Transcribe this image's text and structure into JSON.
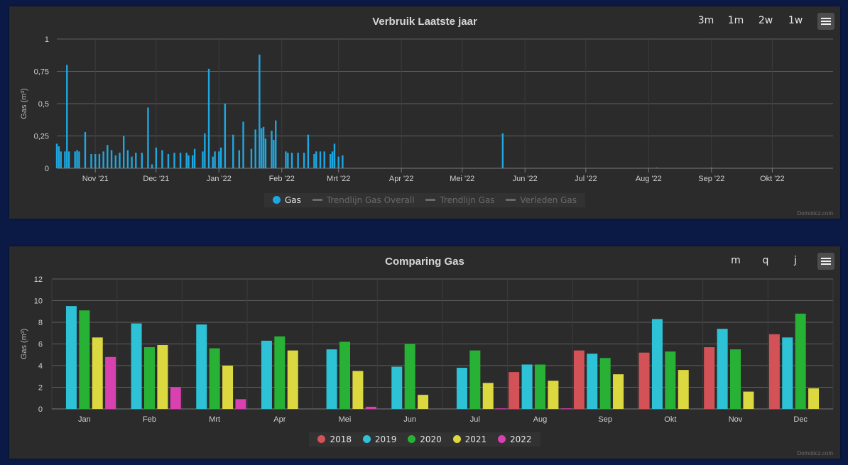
{
  "panel1": {
    "title": "Verbruik Laatste jaar",
    "range_buttons": [
      "3m",
      "1m",
      "2w",
      "1w"
    ],
    "credit": "Domoticz.com",
    "legend": [
      {
        "label": "Gas",
        "color": "#1ea7e1",
        "enabled": true,
        "marker": "dot"
      },
      {
        "label": "Trendlijn Gas Overall",
        "enabled": false,
        "marker": "line"
      },
      {
        "label": "Trendlijn Gas",
        "enabled": false,
        "marker": "line"
      },
      {
        "label": "Verleden Gas",
        "enabled": false,
        "marker": "line"
      }
    ]
  },
  "panel2": {
    "title": "Comparing Gas",
    "range_buttons": [
      "m",
      "q",
      "j"
    ],
    "credit": "Domoticz.com",
    "legend": [
      {
        "label": "2018",
        "color": "#d35257"
      },
      {
        "label": "2019",
        "color": "#2ec2d6"
      },
      {
        "label": "2020",
        "color": "#27b236"
      },
      {
        "label": "2021",
        "color": "#dcd840"
      },
      {
        "label": "2022",
        "color": "#d940b0"
      }
    ]
  },
  "chart_data": [
    {
      "type": "bar",
      "title": "Verbruik Laatste jaar",
      "ylabel": "Gas (m³)",
      "ylim": [
        0,
        1
      ],
      "yticks": [
        "0",
        "0,25",
        "0,5",
        "0,75",
        "1"
      ],
      "x_tick_labels": [
        "Nov '21",
        "Dec '21",
        "Jan '22",
        "Feb '22",
        "Mrt '22",
        "Apr '22",
        "Mei '22",
        "Jun '22",
        "Jul '22",
        "Aug '22",
        "Sep '22",
        "Okt '22"
      ],
      "x_tick_dates": [
        "2021-11-01",
        "2021-12-01",
        "2022-01-01",
        "2022-02-01",
        "2022-03-01",
        "2022-04-01",
        "2022-05-01",
        "2022-06-01",
        "2022-07-01",
        "2022-08-01",
        "2022-09-01",
        "2022-10-01"
      ],
      "x_range": [
        "2021-10-13",
        "2022-10-31"
      ],
      "grid": true,
      "series": [
        {
          "name": "Gas",
          "color": "#1ea7e1",
          "points": [
            [
              "2021-10-13",
              0.19
            ],
            [
              "2021-10-14",
              0.17
            ],
            [
              "2021-10-15",
              0.13
            ],
            [
              "2021-10-17",
              0.13
            ],
            [
              "2021-10-18",
              0.8
            ],
            [
              "2021-10-19",
              0.13
            ],
            [
              "2021-10-22",
              0.13
            ],
            [
              "2021-10-23",
              0.14
            ],
            [
              "2021-10-24",
              0.13
            ],
            [
              "2021-10-27",
              0.28
            ],
            [
              "2021-10-30",
              0.11
            ],
            [
              "2021-11-01",
              0.11
            ],
            [
              "2021-11-03",
              0.11
            ],
            [
              "2021-11-05",
              0.13
            ],
            [
              "2021-11-07",
              0.18
            ],
            [
              "2021-11-09",
              0.14
            ],
            [
              "2021-11-11",
              0.1
            ],
            [
              "2021-11-13",
              0.12
            ],
            [
              "2021-11-15",
              0.25
            ],
            [
              "2021-11-17",
              0.14
            ],
            [
              "2021-11-19",
              0.09
            ],
            [
              "2021-11-21",
              0.12
            ],
            [
              "2021-11-24",
              0.12
            ],
            [
              "2021-11-27",
              0.47
            ],
            [
              "2021-11-29",
              0.03
            ],
            [
              "2021-12-01",
              0.16
            ],
            [
              "2021-12-04",
              0.14
            ],
            [
              "2021-12-07",
              0.11
            ],
            [
              "2021-12-10",
              0.12
            ],
            [
              "2021-12-13",
              0.12
            ],
            [
              "2021-12-16",
              0.12
            ],
            [
              "2021-12-17",
              0.1
            ],
            [
              "2021-12-19",
              0.1
            ],
            [
              "2021-12-20",
              0.15
            ],
            [
              "2021-12-24",
              0.13
            ],
            [
              "2021-12-25",
              0.27
            ],
            [
              "2021-12-27",
              0.77
            ],
            [
              "2021-12-29",
              0.09
            ],
            [
              "2021-12-30",
              0.13
            ],
            [
              "2022-01-01",
              0.13
            ],
            [
              "2022-01-02",
              0.16
            ],
            [
              "2022-01-04",
              0.5
            ],
            [
              "2022-01-08",
              0.26
            ],
            [
              "2022-01-11",
              0.14
            ],
            [
              "2022-01-13",
              0.36
            ],
            [
              "2022-01-17",
              0.15
            ],
            [
              "2022-01-19",
              0.3
            ],
            [
              "2022-01-21",
              0.88
            ],
            [
              "2022-01-22",
              0.31
            ],
            [
              "2022-01-23",
              0.32
            ],
            [
              "2022-01-24",
              0.23
            ],
            [
              "2022-01-27",
              0.29
            ],
            [
              "2022-01-28",
              0.22
            ],
            [
              "2022-01-29",
              0.37
            ],
            [
              "2022-02-03",
              0.13
            ],
            [
              "2022-02-04",
              0.12
            ],
            [
              "2022-02-06",
              0.12
            ],
            [
              "2022-02-09",
              0.12
            ],
            [
              "2022-02-12",
              0.12
            ],
            [
              "2022-02-14",
              0.26
            ],
            [
              "2022-02-17",
              0.11
            ],
            [
              "2022-02-18",
              0.13
            ],
            [
              "2022-02-20",
              0.13
            ],
            [
              "2022-02-22",
              0.13
            ],
            [
              "2022-02-25",
              0.11
            ],
            [
              "2022-02-26",
              0.13
            ],
            [
              "2022-02-27",
              0.19
            ],
            [
              "2022-03-01",
              0.09
            ],
            [
              "2022-03-03",
              0.1
            ],
            [
              "2022-05-21",
              0.27
            ],
            [
              "2022-08-05",
              0.005
            ],
            [
              "2022-09-01",
              0.005
            ]
          ]
        }
      ]
    },
    {
      "type": "bar",
      "title": "Comparing Gas",
      "ylabel": "Gas (m³)",
      "ylim": [
        0,
        12
      ],
      "yticks": [
        "0",
        "2",
        "4",
        "6",
        "8",
        "10",
        "12"
      ],
      "categories": [
        "Jan",
        "Feb",
        "Mrt",
        "Apr",
        "Mei",
        "Jun",
        "Jul",
        "Aug",
        "Sep",
        "Okt",
        "Nov",
        "Dec"
      ],
      "grid": true,
      "series": [
        {
          "name": "2018",
          "color": "#d35257",
          "values": [
            null,
            null,
            null,
            null,
            null,
            null,
            null,
            3.4,
            5.4,
            5.2,
            5.7,
            6.9
          ]
        },
        {
          "name": "2019",
          "color": "#2ec2d6",
          "values": [
            9.5,
            7.9,
            7.8,
            6.3,
            5.5,
            3.9,
            3.8,
            4.1,
            5.1,
            8.3,
            7.4,
            6.6
          ]
        },
        {
          "name": "2020",
          "color": "#27b236",
          "values": [
            9.1,
            5.7,
            5.6,
            6.7,
            6.2,
            6.0,
            5.4,
            4.1,
            4.7,
            5.3,
            5.5,
            8.8
          ]
        },
        {
          "name": "2021",
          "color": "#dcd840",
          "values": [
            6.6,
            5.9,
            4.0,
            5.4,
            3.5,
            1.3,
            2.4,
            2.6,
            3.2,
            3.6,
            1.6,
            1.9
          ]
        },
        {
          "name": "2022",
          "color": "#d940b0",
          "values": [
            4.8,
            2.0,
            0.9,
            null,
            0.2,
            null,
            0.05,
            0.05,
            null,
            null,
            null,
            null
          ]
        }
      ]
    }
  ]
}
